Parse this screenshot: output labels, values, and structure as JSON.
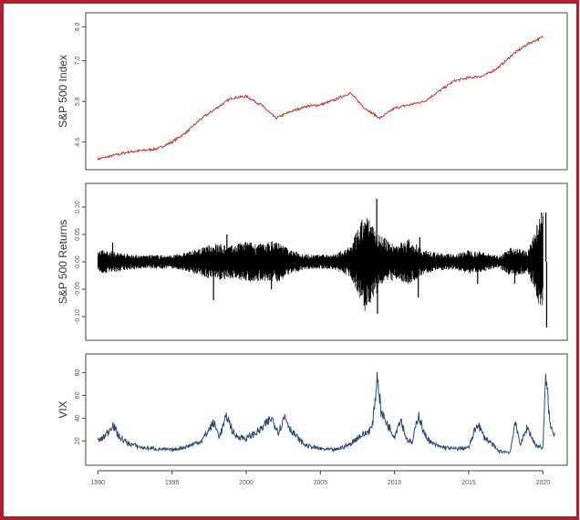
{
  "chart_data": [
    {
      "type": "line",
      "panel": "index",
      "ylabel": "S&P 500 Index",
      "ylim": [
        4.0,
        8.2
      ],
      "y_ticks": [
        {
          "value": 4.6,
          "label": "4.6"
        },
        {
          "value": 5.8,
          "label": "5.8"
        },
        {
          "value": 7.0,
          "label": "7.0"
        },
        {
          "value": 8.0,
          "label": "8.0"
        }
      ],
      "color": "#c0392b",
      "series": [
        {
          "x": [
            1990,
            1991,
            1992,
            1993,
            1994,
            1995,
            1996,
            1997,
            1998,
            1999,
            2000,
            2001,
            2002,
            2003,
            2004,
            2005,
            2006,
            2007,
            2008,
            2009,
            2010,
            2011,
            2012,
            2013,
            2014,
            2015,
            2016,
            2017,
            2018,
            2019,
            2020
          ],
          "values": [
            4.1,
            4.2,
            4.3,
            4.35,
            4.4,
            4.6,
            4.9,
            5.3,
            5.6,
            5.9,
            5.95,
            5.7,
            5.3,
            5.5,
            5.65,
            5.7,
            5.85,
            6.05,
            5.6,
            5.3,
            5.6,
            5.7,
            5.8,
            6.1,
            6.4,
            6.5,
            6.55,
            6.8,
            7.2,
            7.5,
            7.7
          ]
        }
      ]
    },
    {
      "type": "line",
      "panel": "returns",
      "ylabel": "S&P 500 Returns",
      "ylim": [
        -0.13,
        0.13
      ],
      "y_ticks": [
        {
          "value": -0.1,
          "label": "-0.10"
        },
        {
          "value": -0.05,
          "label": "-0.05"
        },
        {
          "value": 0.0,
          "label": "0.00"
        },
        {
          "value": 0.05,
          "label": "0.05"
        },
        {
          "value": 0.1,
          "label": "0.10"
        }
      ],
      "color": "#000000",
      "volatility_envelope": {
        "x": [
          1990,
          1991,
          1992,
          1993,
          1994,
          1995,
          1996,
          1997,
          1998,
          1999,
          2000,
          2001,
          2002,
          2003,
          2004,
          2005,
          2006,
          2007,
          2008,
          2009,
          2010,
          2011,
          2012,
          2013,
          2014,
          2015,
          2016,
          2017,
          2018,
          2019,
          2020
        ],
        "amplitude": [
          0.022,
          0.02,
          0.015,
          0.012,
          0.013,
          0.012,
          0.018,
          0.026,
          0.035,
          0.03,
          0.038,
          0.034,
          0.04,
          0.022,
          0.014,
          0.013,
          0.015,
          0.028,
          0.09,
          0.05,
          0.032,
          0.042,
          0.022,
          0.016,
          0.014,
          0.022,
          0.018,
          0.011,
          0.028,
          0.02,
          0.1
        ]
      },
      "spikes": [
        {
          "x": 1991.0,
          "y": 0.035
        },
        {
          "x": 1997.8,
          "y": -0.07
        },
        {
          "x": 1998.7,
          "y": 0.05
        },
        {
          "x": 2001.7,
          "y": -0.05
        },
        {
          "x": 2008.8,
          "y": 0.115
        },
        {
          "x": 2008.85,
          "y": -0.095
        },
        {
          "x": 2011.6,
          "y": -0.065
        },
        {
          "x": 2011.7,
          "y": 0.045
        },
        {
          "x": 2015.6,
          "y": -0.04
        },
        {
          "x": 2018.1,
          "y": -0.04
        },
        {
          "x": 2020.2,
          "y": 0.09
        },
        {
          "x": 2020.25,
          "y": -0.12
        }
      ]
    },
    {
      "type": "line",
      "panel": "vix",
      "ylabel": "VIX",
      "ylim": [
        5,
        90
      ],
      "y_ticks": [
        {
          "value": 20,
          "label": "20"
        },
        {
          "value": 40,
          "label": "40"
        },
        {
          "value": 60,
          "label": "60"
        },
        {
          "value": 80,
          "label": "80"
        }
      ],
      "color": "#2b4a7a",
      "series": [
        {
          "x": [
            1990,
            1990.3,
            1990.7,
            1991.0,
            1991.4,
            1992,
            1993,
            1994,
            1995,
            1996,
            1997,
            1997.8,
            1998.2,
            1998.7,
            1999.2,
            2000,
            2000.5,
            2001.0,
            2001.7,
            2002.2,
            2002.6,
            2003.0,
            2003.5,
            2004,
            2005,
            2006,
            2007,
            2007.6,
            2008.0,
            2008.5,
            2008.85,
            2009.1,
            2009.5,
            2010.0,
            2010.4,
            2010.8,
            2011.2,
            2011.6,
            2012.0,
            2012.5,
            2013,
            2014,
            2015.0,
            2015.6,
            2016.0,
            2016.5,
            2017,
            2017.8,
            2018.1,
            2018.5,
            2018.95,
            2019.5,
            2020.0,
            2020.2,
            2020.5,
            2020.8
          ],
          "values": [
            20,
            22,
            28,
            35,
            24,
            18,
            14,
            13,
            12,
            15,
            20,
            36,
            24,
            42,
            25,
            22,
            26,
            30,
            40,
            28,
            42,
            30,
            22,
            16,
            13,
            12,
            17,
            24,
            26,
            32,
            78,
            45,
            35,
            24,
            40,
            22,
            18,
            44,
            26,
            18,
            15,
            13,
            14,
            36,
            24,
            18,
            11,
            10,
            36,
            17,
            32,
            16,
            14,
            78,
            32,
            26
          ]
        }
      ]
    }
  ],
  "x_axis": {
    "ticks": [
      {
        "value": 1990,
        "label": "1990"
      },
      {
        "value": 1995,
        "label": "1995"
      },
      {
        "value": 2000,
        "label": "2000"
      },
      {
        "value": 2005,
        "label": "2005"
      },
      {
        "value": 2010,
        "label": "2010"
      },
      {
        "value": 2015,
        "label": "2015"
      },
      {
        "value": 2020,
        "label": "2020"
      }
    ],
    "range": [
      1989.8,
      2020.9
    ]
  }
}
